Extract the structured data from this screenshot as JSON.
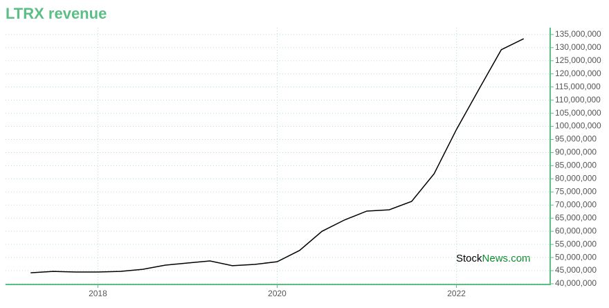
{
  "chart_data": {
    "type": "line",
    "title": "LTRX revenue",
    "watermark": [
      "Stock",
      "News.com"
    ],
    "x": [
      2017.25,
      2017.5,
      2017.75,
      2018,
      2018.25,
      2018.5,
      2018.75,
      2019,
      2019.25,
      2019.5,
      2019.75,
      2020,
      2020.25,
      2020.5,
      2020.75,
      2021,
      2021.25,
      2021.5,
      2021.75,
      2022,
      2022.25,
      2022.5,
      2022.75
    ],
    "series": [
      {
        "color": "#000000",
        "values": [
          44200000,
          44700000,
          44500000,
          44500000,
          44700000,
          45500000,
          47100000,
          47900000,
          48700000,
          46900000,
          47400000,
          48400000,
          52700000,
          60000000,
          64300000,
          67700000,
          68200000,
          71400000,
          81900000,
          98800000,
          114100000,
          129200000,
          133400000
        ]
      }
    ],
    "xlim": [
      2016.97,
      2023.03
    ],
    "xticks": [
      2018,
      2020,
      2022
    ],
    "ylim": [
      40000000,
      137600000
    ],
    "yticks": [
      {
        "value": 40000000,
        "label": "40,000,000"
      },
      {
        "value": 45000000,
        "label": "45,000,000"
      },
      {
        "value": 50000000,
        "label": "50,000,000"
      },
      {
        "value": 55000000,
        "label": "55,000,000"
      },
      {
        "value": 60000000,
        "label": "60,000,000"
      },
      {
        "value": 65000000,
        "label": "65,000,000"
      },
      {
        "value": 70000000,
        "label": "70,000,000"
      },
      {
        "value": 75000000,
        "label": "75,000,000"
      },
      {
        "value": 80000000,
        "label": "80,000,000"
      },
      {
        "value": 85000000,
        "label": "85,000,000"
      },
      {
        "value": 90000000,
        "label": "90,000,000"
      },
      {
        "value": 95000000,
        "label": "95,000,000"
      },
      {
        "value": 100000000,
        "label": "100,000,000"
      },
      {
        "value": 105000000,
        "label": "105,000,000"
      },
      {
        "value": 110000000,
        "label": "110,000,000"
      },
      {
        "value": 115000000,
        "label": "115,000,000"
      },
      {
        "value": 120000000,
        "label": "120,000,000"
      },
      {
        "value": 125000000,
        "label": "125,000,000"
      },
      {
        "value": 130000000,
        "label": "130,000,000"
      },
      {
        "value": 135000000,
        "label": "135,000,000"
      }
    ],
    "grid": true
  }
}
